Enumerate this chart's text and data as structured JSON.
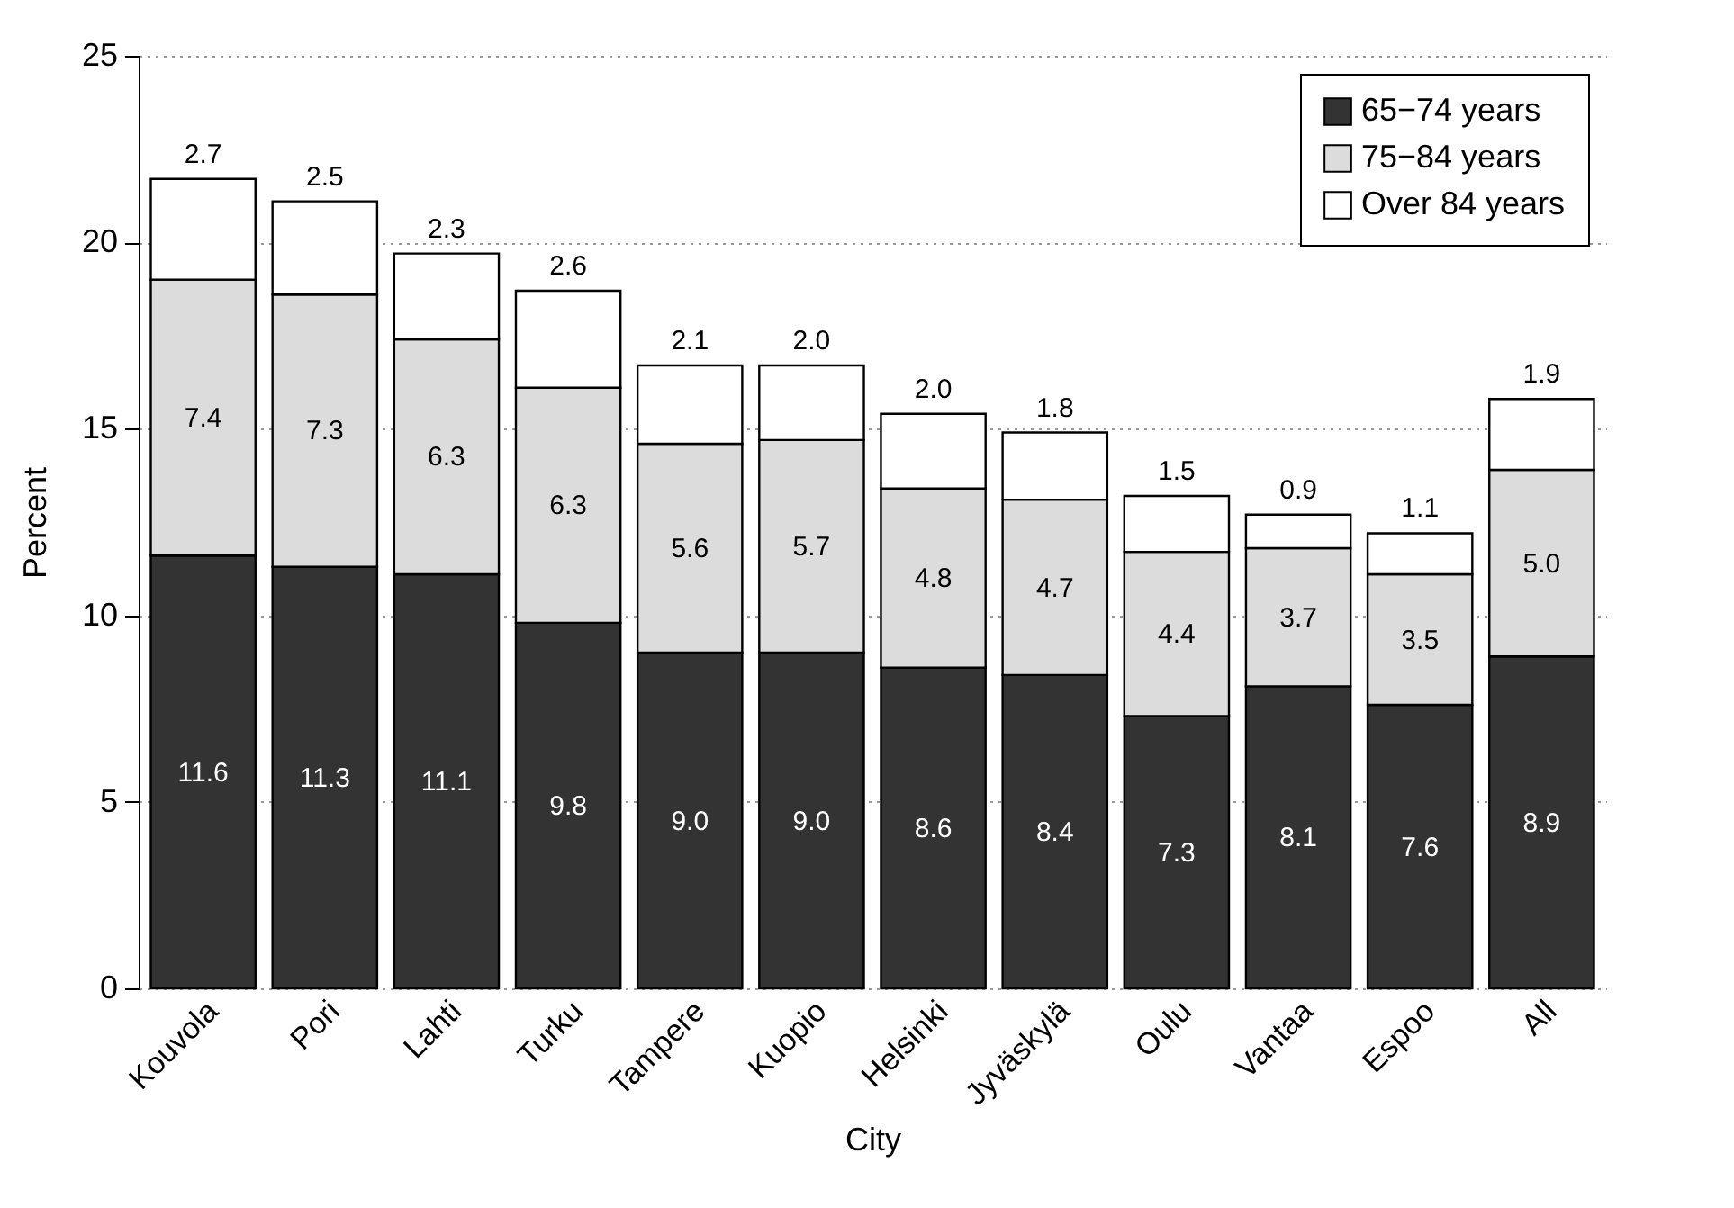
{
  "chart_data": {
    "type": "bar",
    "stacked": true,
    "xlabel": "City",
    "ylabel": "Percent",
    "categories": [
      "Kouvola",
      "Pori",
      "Lahti",
      "Turku",
      "Tampere",
      "Kuopio",
      "Helsinki",
      "Jyväskylä",
      "Oulu",
      "Vantaa",
      "Espoo",
      "All"
    ],
    "series": [
      {
        "name": "65−74 years",
        "color": "#333333",
        "values": [
          11.6,
          11.3,
          11.1,
          9.8,
          9.0,
          9.0,
          8.6,
          8.4,
          7.3,
          8.1,
          7.6,
          8.9
        ],
        "value_labels": [
          "11.6",
          "11.3",
          "11.1",
          "9.8",
          "9.0",
          "9.0",
          "8.6",
          "8.4",
          "7.3",
          "8.1",
          "7.6",
          "8.9"
        ]
      },
      {
        "name": "75−84 years",
        "color": "#dcdcdc",
        "values": [
          7.4,
          7.3,
          6.3,
          6.3,
          5.6,
          5.7,
          4.8,
          4.7,
          4.4,
          3.7,
          3.5,
          5.0
        ],
        "value_labels": [
          "7.4",
          "7.3",
          "6.3",
          "6.3",
          "5.6",
          "5.7",
          "4.8",
          "4.7",
          "4.4",
          "3.7",
          "3.5",
          "5.0"
        ]
      },
      {
        "name": "Over 84 years",
        "color": "#ffffff",
        "values": [
          2.7,
          2.5,
          2.3,
          2.6,
          2.1,
          2.0,
          2.0,
          1.8,
          1.5,
          0.9,
          1.1,
          1.9
        ],
        "value_labels": [
          "2.7",
          "2.5",
          "2.3",
          "2.6",
          "2.1",
          "2.0",
          "2.0",
          "1.8",
          "1.5",
          "0.9",
          "1.1",
          "1.9"
        ]
      }
    ],
    "ylim": [
      0,
      25
    ],
    "yticks": [
      0,
      5,
      10,
      15,
      20,
      25
    ],
    "grid": "y",
    "legend": "top right"
  }
}
